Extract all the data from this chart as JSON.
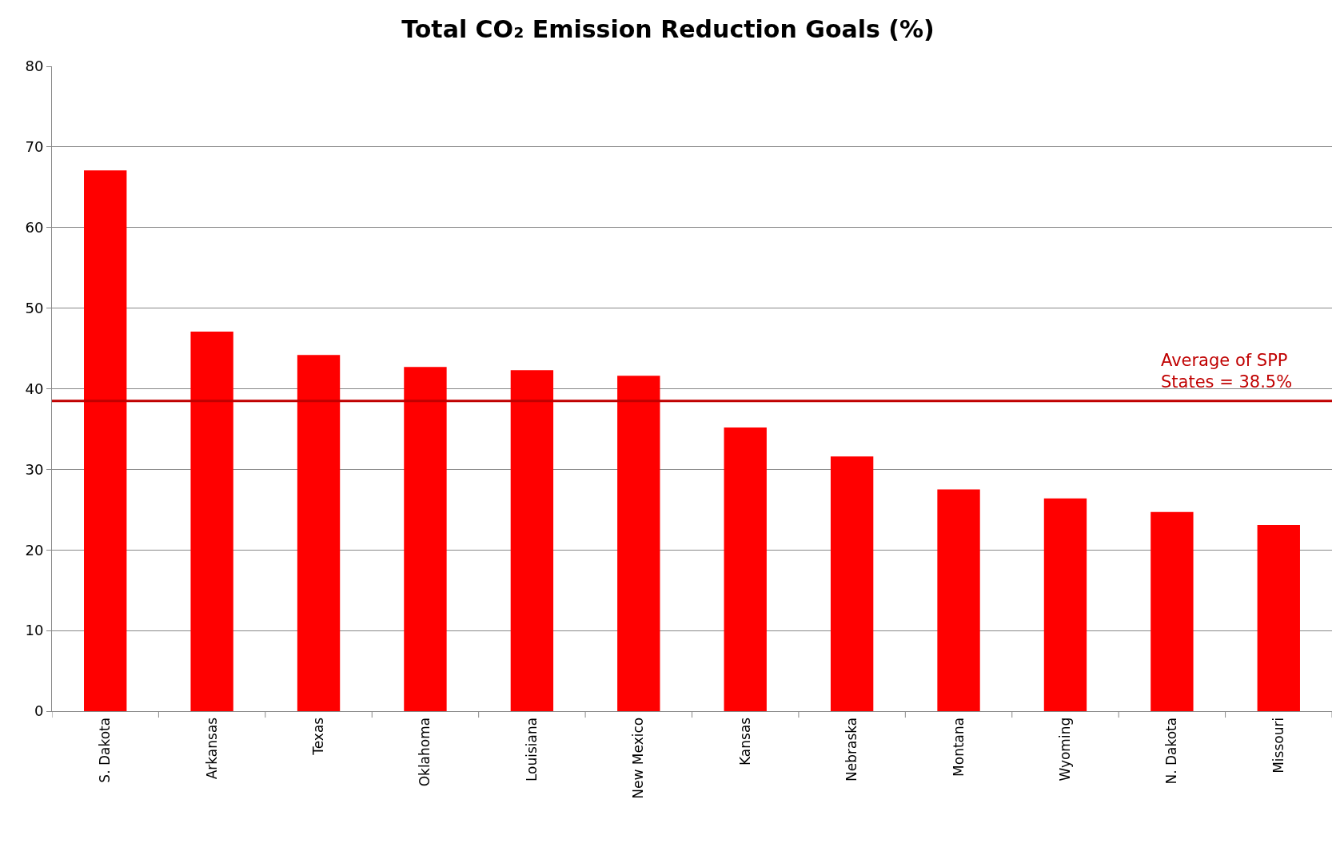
{
  "chart_data": {
    "type": "bar",
    "title": "Total CO₂ Emission Reduction Goals (%)",
    "categories": [
      "S. Dakota",
      "Arkansas",
      "Texas",
      "Oklahoma",
      "Louisiana",
      "New Mexico",
      "Kansas",
      "Nebraska",
      "Montana",
      "Wyoming",
      "N. Dakota",
      "Missouri"
    ],
    "values": [
      67.1,
      47.1,
      44.2,
      42.7,
      42.3,
      41.6,
      35.2,
      31.6,
      27.5,
      26.4,
      24.7,
      23.1
    ],
    "color": "#ff0000",
    "ylim": [
      0,
      80
    ],
    "yticks": [
      0,
      10,
      20,
      30,
      40,
      50,
      60,
      70,
      80
    ],
    "grid": "y",
    "ref_lines": [
      {
        "axis": "y",
        "value": 38.5,
        "label": "Average of SPP\nStates = 38.5%",
        "color": "#c00000"
      }
    ]
  }
}
